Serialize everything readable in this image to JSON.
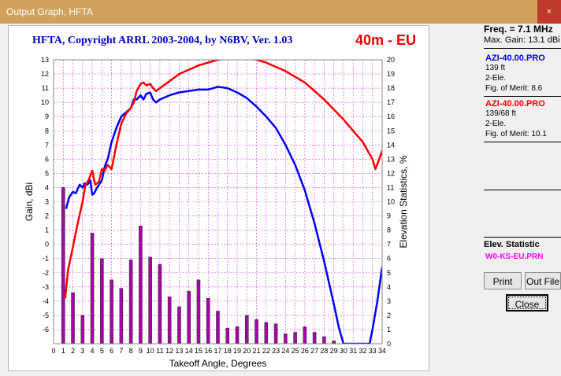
{
  "window": {
    "title": "Output Graph, HFTA",
    "close_icon": "×"
  },
  "chart_data": {
    "type": "line",
    "title": "HFTA, Copyright ARRL 2003-2004, by N6BV, Ver. 1.03",
    "band_label": "40m - EU",
    "xlabel": "Takeoff Angle, Degrees",
    "ylabel": "Gain, dBi",
    "y2label": "Elevation Statistics, %",
    "xlim": [
      0,
      34
    ],
    "ylim": [
      -7,
      13
    ],
    "y2lim": [
      0,
      20
    ],
    "x_ticks": [
      0,
      1,
      2,
      3,
      4,
      5,
      6,
      7,
      8,
      9,
      10,
      11,
      12,
      13,
      14,
      15,
      16,
      17,
      18,
      19,
      20,
      21,
      22,
      23,
      24,
      25,
      26,
      27,
      28,
      29,
      30,
      31,
      32,
      33,
      34
    ],
    "y_ticks": [
      -6,
      -5,
      -4,
      -3,
      -2,
      -1,
      0,
      1,
      2,
      3,
      4,
      5,
      6,
      7,
      8,
      9,
      10,
      11,
      12,
      13
    ],
    "y2_ticks": [
      0,
      1,
      2,
      3,
      4,
      5,
      6,
      7,
      8,
      9,
      10,
      11,
      12,
      13,
      14,
      15,
      16,
      17,
      18,
      19,
      20
    ],
    "grid": true,
    "colors": {
      "title": "#0000cc",
      "band": "#ee0000",
      "series1": "#0000ff",
      "series2": "#ff0000",
      "bars": "#aa00aa"
    },
    "series": [
      {
        "name": "AZI-40.00.PRO",
        "color": "#0000ff",
        "x": [
          1.3,
          1.6,
          2,
          2.3,
          2.7,
          3,
          3.2,
          3.5,
          3.8,
          4,
          4.2,
          4.5,
          5,
          5.3,
          5.6,
          6,
          6.5,
          7,
          7.5,
          8,
          8.3,
          8.6,
          9,
          9.3,
          9.6,
          10,
          10.3,
          10.6,
          11,
          12,
          13,
          14,
          15,
          16,
          17,
          18,
          19,
          20,
          21,
          22,
          23,
          24,
          25,
          26,
          27,
          28,
          29,
          29.5,
          30,
          30.2,
          31,
          32,
          32.7,
          33,
          33.5,
          34
        ],
        "y": [
          2.5,
          3.3,
          3.7,
          3.6,
          4.2,
          4.0,
          4.3,
          4.2,
          4.5,
          3.5,
          3.6,
          4.0,
          4.5,
          5.5,
          6,
          7.2,
          8.2,
          9,
          9.3,
          9.6,
          10.2,
          10.2,
          10.5,
          10.2,
          10.6,
          10.7,
          10.2,
          10.0,
          10.2,
          10.5,
          10.7,
          10.8,
          10.9,
          10.9,
          11.1,
          11.0,
          10.7,
          10.3,
          9.7,
          9.0,
          8.2,
          7.0,
          5.6,
          3.8,
          1.5,
          -1.2,
          -4.2,
          -5.8,
          -7,
          -7,
          -7,
          -7,
          -7,
          -6,
          -4,
          -1.6
        ]
      },
      {
        "name": "AZI-40.00.PRO",
        "color": "#ff0000",
        "x": [
          1.2,
          1.5,
          2,
          2.5,
          3,
          3.3,
          3.6,
          4,
          4.3,
          4.7,
          5,
          5.3,
          5.6,
          6,
          6.5,
          7,
          7.5,
          8,
          8.3,
          8.6,
          9,
          9.3,
          9.6,
          10,
          10.3,
          10.6,
          11,
          12,
          13,
          14,
          15,
          16,
          17,
          18,
          19,
          20,
          21,
          22,
          23,
          24,
          25,
          26,
          27,
          28,
          29,
          30,
          31,
          32,
          33,
          33.3,
          33.7,
          34
        ],
        "y": [
          -3.8,
          -1.8,
          -0.2,
          1.5,
          3.0,
          4.2,
          4.5,
          5.2,
          4.2,
          4.4,
          5.3,
          5.2,
          5.6,
          5.3,
          7.0,
          8.5,
          9.2,
          9.6,
          10.0,
          10.8,
          11.3,
          11.4,
          11.2,
          11.3,
          11.0,
          10.8,
          11.0,
          11.5,
          12.0,
          12.3,
          12.6,
          12.8,
          13.0,
          13.1,
          13.1,
          13.1,
          13.0,
          12.8,
          12.5,
          12.2,
          11.8,
          11.4,
          10.8,
          10.2,
          9.5,
          8.8,
          8.0,
          7.2,
          6.0,
          5.3,
          6.0,
          6.6
        ]
      }
    ],
    "bars": {
      "name": "W0-KS-EU.PRN",
      "x": [
        1,
        2,
        3,
        4,
        5,
        6,
        7,
        8,
        9,
        10,
        11,
        12,
        13,
        14,
        15,
        16,
        17,
        18,
        19,
        20,
        21,
        22,
        23,
        24,
        25,
        26,
        27,
        28,
        29,
        30,
        31,
        32,
        33,
        34
      ],
      "y": [
        11.0,
        3.6,
        2.0,
        7.8,
        6.0,
        4.5,
        3.9,
        5.9,
        8.3,
        6.1,
        5.6,
        3.3,
        2.6,
        3.7,
        4.5,
        3.2,
        2.3,
        1.1,
        1.2,
        2.0,
        1.7,
        1.5,
        1.4,
        0.7,
        0.8,
        1.2,
        0.8,
        0.5,
        0.2,
        0,
        0,
        0,
        0,
        0
      ]
    }
  },
  "panel": {
    "freq": "Freq. = 7.1 MHz",
    "max_gain": "Max. Gain: 13.1 dBi",
    "antennas": [
      {
        "name": "AZI-40.00.PRO",
        "height": "139 ft",
        "elements": "2-Ele.",
        "fom": "Fig. of Merit:  8.6",
        "color": "#0000ff"
      },
      {
        "name": "AZI-40.00.PRO",
        "height": "139/68 ft",
        "elements": "2-Ele.",
        "fom": "Fig. of Merit:  10.1",
        "color": "#ff0000"
      }
    ],
    "elev_title": "Elev. Statistic",
    "elev_file": "W0-KS-EU.PRN",
    "buttons": {
      "print": "Print",
      "outfile": "Out File",
      "close": "Close"
    }
  }
}
